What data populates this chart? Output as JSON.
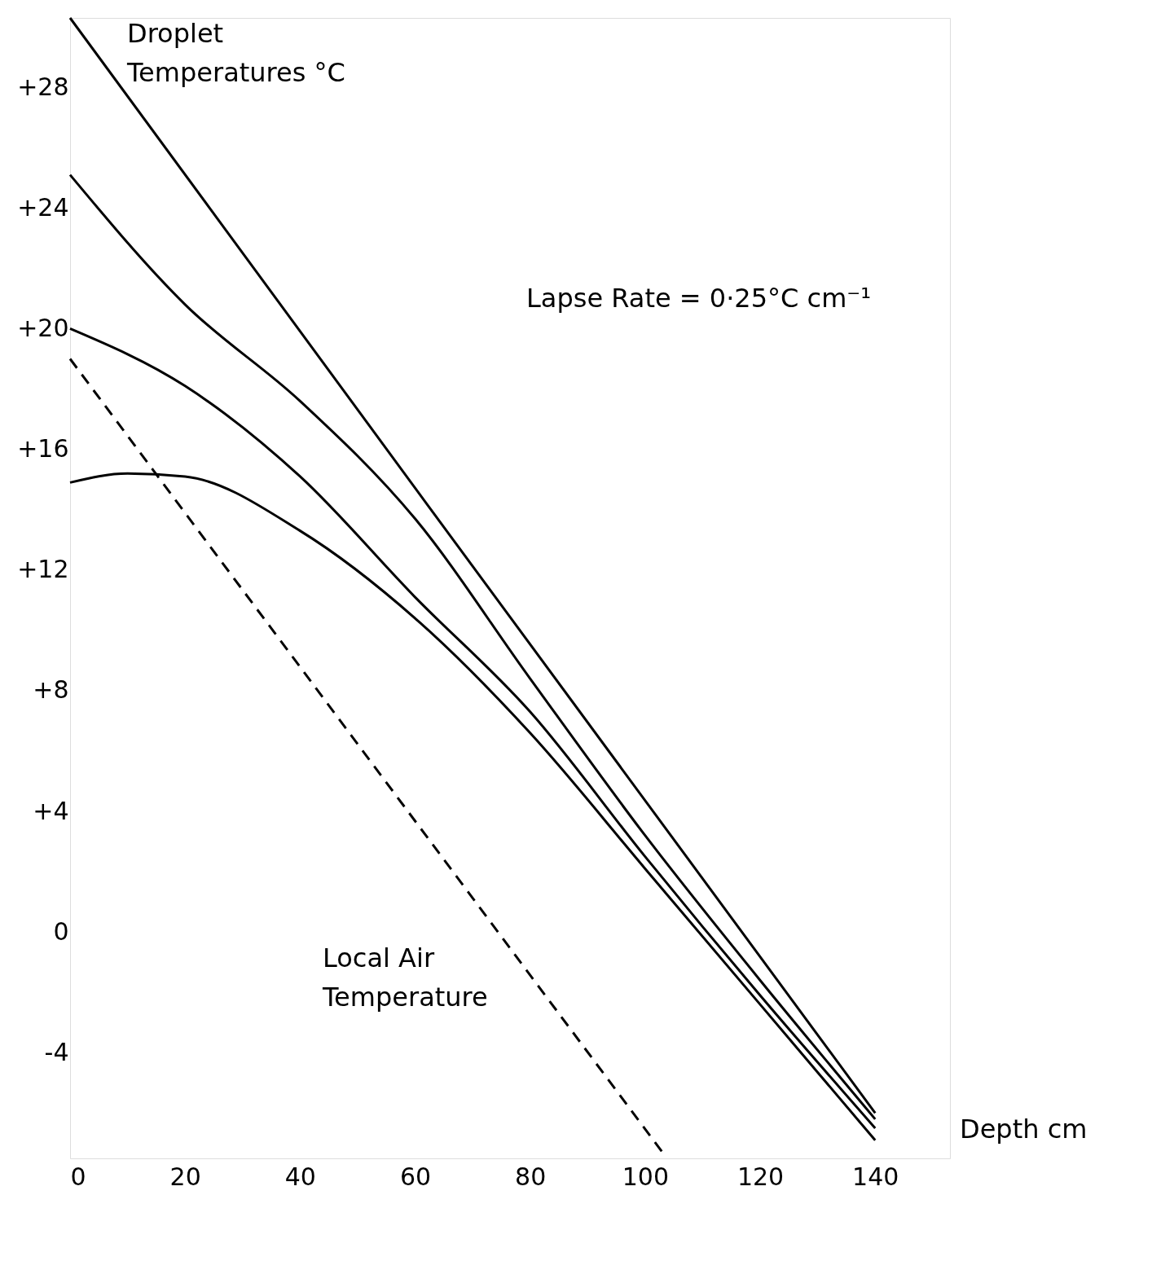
{
  "chart_data": {
    "type": "line",
    "xlabel": "Depth cm",
    "xlim": [
      0,
      153
    ],
    "ylim": [
      -7.5,
      30.3
    ],
    "xticks": [
      0,
      20,
      40,
      60,
      80,
      100,
      120,
      140
    ],
    "yticks": [
      {
        "value": -4,
        "label": "-4"
      },
      {
        "value": 0,
        "label": "0"
      },
      {
        "value": 4,
        "label": "+4"
      },
      {
        "value": 8,
        "label": "+8"
      },
      {
        "value": 12,
        "label": "+12"
      },
      {
        "value": 16,
        "label": "+16"
      },
      {
        "value": 20,
        "label": "+20"
      },
      {
        "value": 24,
        "label": "+24"
      },
      {
        "value": 28,
        "label": "+28"
      }
    ],
    "grid": false,
    "marker": "none",
    "series": [
      {
        "color": "#000000",
        "line_style": "solid",
        "x": [
          0,
          62,
          140
        ],
        "values": [
          30.3,
          14.2,
          -6.0
        ]
      },
      {
        "color": "#000000",
        "line_style": "solid",
        "x": [
          0,
          20,
          40,
          60,
          80,
          100,
          120,
          140
        ],
        "values": [
          25.1,
          20.8,
          17.6,
          13.7,
          8.4,
          3.2,
          -1.6,
          -6.2
        ]
      },
      {
        "color": "#000000",
        "line_style": "solid",
        "x": [
          0,
          20,
          40,
          60,
          80,
          100,
          120,
          140
        ],
        "values": [
          20.0,
          18.1,
          15.1,
          11.1,
          7.3,
          2.5,
          -2.1,
          -6.5
        ]
      },
      {
        "color": "#000000",
        "line_style": "solid",
        "x": [
          0,
          10,
          20,
          40,
          60,
          80,
          100,
          120,
          140
        ],
        "values": [
          14.9,
          15.2,
          15.1,
          13.3,
          10.4,
          6.6,
          2.1,
          -2.4,
          -6.9
        ]
      },
      {
        "color": "#000000",
        "line_style": "dashed",
        "x": [
          0,
          103.4
        ],
        "values": [
          19.0,
          -7.4
        ]
      }
    ],
    "annotations": [
      "Droplet\nTemperatures °C",
      "Lapse Rate = 0·25°C cm⁻¹",
      "Local Air\nTemperature"
    ]
  }
}
